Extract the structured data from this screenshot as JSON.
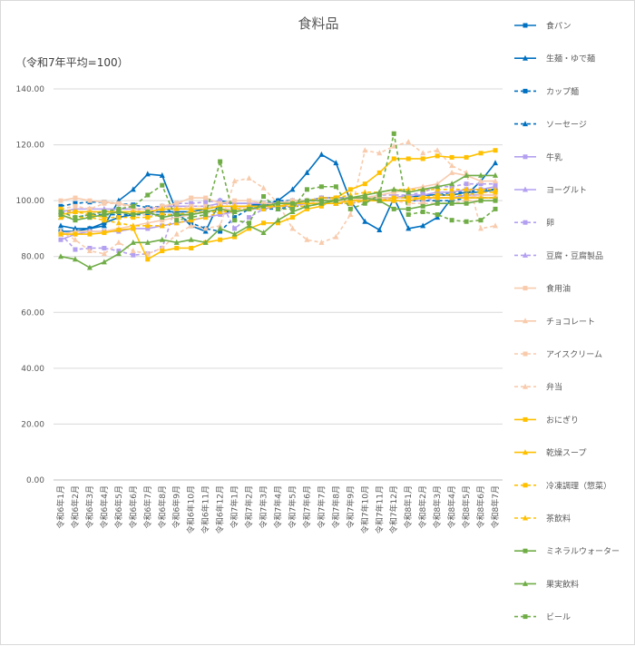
{
  "chart_data": {
    "type": "line",
    "title": "食料品",
    "ylabel": "（令和7年平均=100）",
    "xlabel": "",
    "ylim": [
      0,
      140
    ],
    "yticks": [
      "0.00",
      "20.00",
      "40.00",
      "60.00",
      "80.00",
      "100.00",
      "120.00",
      "140.00"
    ],
    "ytick_values": [
      0,
      20,
      40,
      60,
      80,
      100,
      120,
      140
    ],
    "grid": true,
    "legend_position": "right",
    "categories": [
      "令和6年1月",
      "令和6年2月",
      "令和6年3月",
      "令和6年4月",
      "令和6年5月",
      "令和6年6月",
      "令和6年7月",
      "令和6年8月",
      "令和6年9月",
      "令和6年10月",
      "令和6年11月",
      "令和6年12月",
      "令和7年1月",
      "令和7年2月",
      "令和7年3月",
      "令和7年4月",
      "令和7年5月",
      "令和7年6月",
      "令和7年7月",
      "令和7年8月",
      "令和7年9月",
      "令和7年10月",
      "令和7年11月",
      "令和7年12月",
      "令和8年1月",
      "令和8年2月",
      "令和8年3月",
      "令和8年4月",
      "令和8年5月",
      "令和8年6月",
      "令和8年7月"
    ],
    "series": [
      {
        "name": "食パン",
        "color": "#0070C0",
        "dash": false,
        "marker": "square",
        "values": [
          89,
          89,
          90,
          92,
          94,
          95,
          96,
          96,
          96,
          96,
          97,
          98,
          98,
          98,
          99,
          99,
          100,
          100,
          101,
          101,
          101,
          101,
          101,
          101,
          101,
          102,
          102,
          102,
          103,
          103,
          104
        ]
      },
      {
        "name": "生麺・ゆで麺",
        "color": "#0070C0",
        "dash": false,
        "marker": "triangle",
        "values": [
          91,
          90,
          90,
          91,
          100,
          104,
          109.5,
          109,
          96,
          91,
          89,
          100,
          99,
          99,
          98,
          100,
          104,
          110,
          116.5,
          113.5,
          100,
          92.5,
          89.5,
          101,
          90,
          91,
          94,
          101,
          102,
          107,
          113.5
        ]
      },
      {
        "name": "カップ麺",
        "color": "#0070C0",
        "dash": true,
        "marker": "square",
        "values": [
          98,
          99,
          99.5,
          99.5,
          99,
          98.5,
          97.5,
          98,
          95,
          92,
          90,
          89,
          94,
          97,
          99,
          100,
          100,
          100,
          100,
          100,
          100,
          100,
          100,
          100,
          100,
          100,
          100,
          100,
          101,
          101,
          101
        ]
      },
      {
        "name": "ソーセージ",
        "color": "#0070C0",
        "dash": true,
        "marker": "triangle",
        "values": [
          94,
          94,
          95,
          95,
          95,
          95,
          95,
          95,
          95,
          95,
          96,
          96,
          96,
          97,
          97,
          97,
          98,
          98,
          99,
          99,
          99,
          100,
          100,
          101,
          101,
          102,
          102,
          103,
          103,
          104,
          104
        ]
      },
      {
        "name": "牛乳",
        "color": "#B4A0F0",
        "dash": false,
        "marker": "square",
        "values": [
          86,
          88,
          89,
          89,
          89,
          90,
          90,
          91,
          92,
          93,
          94,
          95,
          96,
          97,
          97,
          98,
          98,
          99,
          99,
          100,
          100,
          100,
          101,
          101,
          102,
          102,
          103,
          103,
          104,
          104,
          105
        ]
      },
      {
        "name": "ヨーグルト",
        "color": "#B4A0F0",
        "dash": false,
        "marker": "triangle",
        "values": [
          96,
          97,
          97,
          97,
          97,
          97,
          97,
          98,
          98,
          98,
          98,
          99,
          99,
          99,
          99,
          99,
          100,
          100,
          100,
          100,
          100,
          100,
          100,
          101,
          101,
          101,
          101,
          101,
          102,
          102,
          102
        ]
      },
      {
        "name": "卵",
        "color": "#B4A0F0",
        "dash": true,
        "marker": "square",
        "values": [
          88,
          82.5,
          83,
          83,
          82,
          80.5,
          81,
          83,
          99,
          99,
          99.5,
          100,
          90,
          94,
          97,
          98,
          99,
          100,
          101,
          101,
          101,
          101,
          102,
          102,
          102,
          103,
          105,
          105,
          106,
          106,
          106
        ]
      },
      {
        "name": "豆腐・豆腐製品",
        "color": "#B4A0F0",
        "dash": true,
        "marker": "triangle",
        "values": [
          96,
          96,
          96,
          96,
          97,
          97,
          97,
          97,
          97,
          97,
          97,
          98,
          98,
          98,
          98,
          98,
          99,
          99,
          99,
          99,
          99,
          100,
          100,
          100,
          100,
          100,
          101,
          101,
          101,
          101,
          101
        ]
      },
      {
        "name": "食用油",
        "color": "#F8CBAD",
        "dash": false,
        "marker": "square",
        "values": [
          100,
          101,
          100,
          99.5,
          99,
          98,
          94,
          98,
          99,
          101,
          101,
          99,
          100,
          100,
          99,
          99,
          100,
          100,
          100,
          100,
          100,
          101,
          101,
          101,
          101,
          101,
          101,
          101,
          101,
          102,
          102
        ]
      },
      {
        "name": "チョコレート",
        "color": "#F8CBAD",
        "dash": false,
        "marker": "triangle",
        "values": [
          88,
          89,
          89,
          89,
          90,
          91,
          92,
          93,
          94,
          95,
          96,
          97,
          97,
          98,
          98,
          99,
          99,
          100,
          100,
          100,
          101,
          101,
          102,
          103,
          104,
          105,
          106,
          110,
          109,
          107,
          107
        ]
      },
      {
        "name": "アイスクリーム",
        "color": "#F8CBAD",
        "dash": true,
        "marker": "square",
        "values": [
          97,
          98,
          97,
          99,
          99,
          97,
          97,
          98,
          97,
          98,
          98,
          98,
          98,
          98,
          98,
          98,
          99,
          99,
          100,
          101,
          101,
          101,
          101,
          100,
          99,
          99,
          99,
          99,
          100,
          100,
          100
        ]
      },
      {
        "name": "弁当",
        "color": "#F8CBAD",
        "dash": true,
        "marker": "triangle",
        "values": [
          89,
          86,
          82,
          81,
          85,
          82,
          81,
          83,
          88,
          91,
          90,
          91,
          107,
          108,
          104.5,
          99,
          90,
          86,
          85,
          87,
          95,
          118,
          117,
          119.5,
          121,
          117,
          118,
          112.5,
          110,
          90,
          91
        ]
      },
      {
        "name": "おにぎり",
        "color": "#FFC000",
        "dash": false,
        "marker": "square",
        "values": [
          88,
          88,
          88,
          88.5,
          89.5,
          90,
          79,
          82,
          83,
          83,
          85,
          86,
          87,
          90,
          92,
          92,
          94,
          97,
          98,
          101,
          104,
          106,
          110,
          115,
          115,
          115,
          116,
          115.5,
          115.5,
          117,
          118
        ]
      },
      {
        "name": "乾燥スープ",
        "color": "#FFC000",
        "dash": false,
        "marker": "triangle",
        "values": [
          95,
          96,
          96,
          96,
          96,
          96,
          96,
          97,
          97,
          97,
          97,
          98,
          98,
          98,
          98,
          98,
          99,
          99,
          99,
          99,
          100,
          100,
          100,
          100,
          100,
          101,
          101,
          101,
          101,
          101,
          101
        ]
      },
      {
        "name": "冷凍調理（惣菜）",
        "color": "#FFC000",
        "dash": true,
        "marker": "square",
        "values": [
          97,
          96,
          95,
          94,
          94,
          94,
          94,
          95,
          95,
          96,
          96,
          96,
          97,
          97,
          97,
          98,
          98,
          98,
          99,
          99,
          99,
          100,
          100,
          101,
          101,
          101,
          102,
          102,
          102,
          103,
          103
        ]
      },
      {
        "name": "茶飲料",
        "color": "#FFC000",
        "dash": true,
        "marker": "triangle",
        "values": [
          94,
          94,
          94,
          93,
          92,
          91,
          91,
          91,
          92,
          93,
          94,
          96,
          96,
          97,
          98,
          99,
          99,
          100,
          101,
          101,
          102,
          103,
          103,
          104,
          104,
          104,
          104,
          104,
          104,
          104,
          104
        ]
      },
      {
        "name": "ミネラルウォーター",
        "color": "#70AD47",
        "dash": false,
        "marker": "square",
        "values": [
          95,
          93,
          94,
          95,
          96,
          95,
          96,
          94,
          95,
          95,
          96,
          97,
          96,
          97,
          98,
          99,
          99,
          100,
          100,
          100,
          101,
          101,
          100,
          97,
          97,
          98,
          99,
          99,
          99,
          100,
          100
        ]
      },
      {
        "name": "果実飲料",
        "color": "#70AD47",
        "dash": false,
        "marker": "triangle",
        "values": [
          80,
          79,
          76,
          78,
          81,
          85,
          85,
          86,
          85,
          86,
          85,
          90,
          88,
          91,
          88.5,
          93,
          96,
          98,
          99,
          100,
          101,
          102,
          103,
          104,
          103,
          104,
          105,
          106,
          109,
          109,
          109
        ]
      },
      {
        "name": "ビール",
        "color": "#70AD47",
        "dash": true,
        "marker": "square",
        "values": [
          96,
          94,
          95,
          96,
          97,
          98,
          102,
          105.5,
          93,
          94,
          95,
          114,
          93,
          92,
          101.5,
          97,
          97,
          104,
          105,
          105,
          97,
          99,
          102,
          124,
          95,
          96,
          95,
          93,
          92.5,
          93,
          97
        ]
      }
    ]
  }
}
